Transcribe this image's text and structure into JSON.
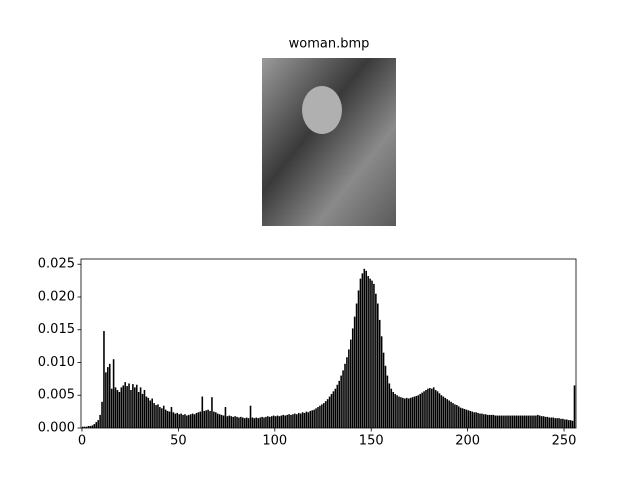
{
  "chart_data": [
    {
      "type": "image",
      "title": "woman.bmp"
    },
    {
      "type": "histogram",
      "color": "#000000",
      "bins": [
        0,
        1,
        2,
        3,
        4,
        5,
        6,
        7,
        8,
        9,
        10,
        11,
        12,
        13,
        14,
        15,
        16,
        17,
        18,
        19,
        20,
        21,
        22,
        23,
        24,
        25,
        26,
        27,
        28,
        29,
        30,
        31,
        32,
        33,
        34,
        35,
        36,
        37,
        38,
        39,
        40,
        41,
        42,
        43,
        44,
        45,
        46,
        47,
        48,
        49,
        50,
        51,
        52,
        53,
        54,
        55,
        56,
        57,
        58,
        59,
        60,
        61,
        62,
        63,
        64,
        65,
        66,
        67,
        68,
        69,
        70,
        71,
        72,
        73,
        74,
        75,
        76,
        77,
        78,
        79,
        80,
        81,
        82,
        83,
        84,
        85,
        86,
        87,
        88,
        89,
        90,
        91,
        92,
        93,
        94,
        95,
        96,
        97,
        98,
        99,
        100,
        101,
        102,
        103,
        104,
        105,
        106,
        107,
        108,
        109,
        110,
        111,
        112,
        113,
        114,
        115,
        116,
        117,
        118,
        119,
        120,
        121,
        122,
        123,
        124,
        125,
        126,
        127,
        128,
        129,
        130,
        131,
        132,
        133,
        134,
        135,
        136,
        137,
        138,
        139,
        140,
        141,
        142,
        143,
        144,
        145,
        146,
        147,
        148,
        149,
        150,
        151,
        152,
        153,
        154,
        155,
        156,
        157,
        158,
        159,
        160,
        161,
        162,
        163,
        164,
        165,
        166,
        167,
        168,
        169,
        170,
        171,
        172,
        173,
        174,
        175,
        176,
        177,
        178,
        179,
        180,
        181,
        182,
        183,
        184,
        185,
        186,
        187,
        188,
        189,
        190,
        191,
        192,
        193,
        194,
        195,
        196,
        197,
        198,
        199,
        200,
        201,
        202,
        203,
        204,
        205,
        206,
        207,
        208,
        209,
        210,
        211,
        212,
        213,
        214,
        215,
        216,
        217,
        218,
        219,
        220,
        221,
        222,
        223,
        224,
        225,
        226,
        227,
        228,
        229,
        230,
        231,
        232,
        233,
        234,
        235,
        236,
        237,
        238,
        239,
        240,
        241,
        242,
        243,
        244,
        245,
        246,
        247,
        248,
        249,
        250,
        251,
        252,
        253,
        254,
        255,
        256
      ],
      "values": [
        0.0002,
        0.0002,
        0.0002,
        0.0003,
        0.0003,
        0.0004,
        0.0006,
        0.0009,
        0.0012,
        0.002,
        0.004,
        0.0148,
        0.0085,
        0.0093,
        0.0098,
        0.006,
        0.0105,
        0.0062,
        0.0058,
        0.0055,
        0.0062,
        0.0065,
        0.007,
        0.0064,
        0.0068,
        0.0058,
        0.0067,
        0.0062,
        0.0066,
        0.0055,
        0.0062,
        0.0052,
        0.0058,
        0.0048,
        0.0046,
        0.0042,
        0.0045,
        0.0038,
        0.0035,
        0.0036,
        0.0032,
        0.003,
        0.0034,
        0.0028,
        0.0026,
        0.0025,
        0.0032,
        0.0024,
        0.0022,
        0.0023,
        0.0021,
        0.0022,
        0.002,
        0.0021,
        0.0019,
        0.002,
        0.0021,
        0.0022,
        0.0021,
        0.0023,
        0.0024,
        0.0025,
        0.0048,
        0.0026,
        0.0027,
        0.0028,
        0.0026,
        0.0047,
        0.0025,
        0.0024,
        0.0022,
        0.0021,
        0.002,
        0.0019,
        0.0032,
        0.0018,
        0.0019,
        0.0018,
        0.0017,
        0.0018,
        0.0017,
        0.0016,
        0.0017,
        0.0016,
        0.0015,
        0.0016,
        0.0015,
        0.0034,
        0.0016,
        0.0015,
        0.0016,
        0.0015,
        0.0016,
        0.0017,
        0.0016,
        0.0017,
        0.0018,
        0.0017,
        0.0018,
        0.0019,
        0.0018,
        0.0019,
        0.0018,
        0.0019,
        0.002,
        0.0019,
        0.002,
        0.0021,
        0.002,
        0.0021,
        0.0022,
        0.0021,
        0.0023,
        0.0022,
        0.0024,
        0.0023,
        0.0025,
        0.0024,
        0.0026,
        0.0027,
        0.0028,
        0.003,
        0.0032,
        0.0034,
        0.0036,
        0.0038,
        0.0041,
        0.0044,
        0.0048,
        0.0052,
        0.0056,
        0.006,
        0.0066,
        0.0072,
        0.008,
        0.0088,
        0.0098,
        0.0108,
        0.012,
        0.0135,
        0.0152,
        0.017,
        0.019,
        0.021,
        0.0228,
        0.0236,
        0.0243,
        0.024,
        0.0232,
        0.0228,
        0.0225,
        0.022,
        0.0205,
        0.019,
        0.0165,
        0.014,
        0.0115,
        0.0095,
        0.008,
        0.0068,
        0.006,
        0.0055,
        0.0052,
        0.005,
        0.0048,
        0.0047,
        0.0046,
        0.0045,
        0.0046,
        0.0045,
        0.0046,
        0.0047,
        0.0048,
        0.0049,
        0.005,
        0.0052,
        0.0054,
        0.0056,
        0.0058,
        0.006,
        0.0061,
        0.006,
        0.0062,
        0.0058,
        0.0056,
        0.0053,
        0.005,
        0.0048,
        0.0046,
        0.0044,
        0.0042,
        0.004,
        0.0038,
        0.0036,
        0.0035,
        0.0033,
        0.0031,
        0.003,
        0.0029,
        0.0028,
        0.0027,
        0.0026,
        0.0025,
        0.0024,
        0.0024,
        0.0023,
        0.0022,
        0.0022,
        0.0021,
        0.0021,
        0.002,
        0.002,
        0.002,
        0.002,
        0.0019,
        0.0019,
        0.0019,
        0.0019,
        0.0019,
        0.0019,
        0.0019,
        0.0019,
        0.0019,
        0.0019,
        0.0019,
        0.0019,
        0.0019,
        0.0019,
        0.0019,
        0.0019,
        0.0019,
        0.0019,
        0.0019,
        0.0019,
        0.0019,
        0.0019,
        0.002,
        0.0019,
        0.0018,
        0.0018,
        0.0017,
        0.0017,
        0.0016,
        0.0016,
        0.0016,
        0.0015,
        0.0015,
        0.0015,
        0.0014,
        0.0014,
        0.0013,
        0.0013,
        0.0012,
        0.0012,
        0.0011,
        0.0065
      ],
      "xlim": [
        -0.5,
        256.2
      ],
      "ylim": [
        0,
        0.0258
      ],
      "xticks": [
        0,
        50,
        100,
        150,
        200,
        250
      ],
      "yticks": [
        {
          "value": 0,
          "label": "0.000"
        },
        {
          "value": 0.005,
          "label": "0.005"
        },
        {
          "value": 0.01,
          "label": "0.010"
        },
        {
          "value": 0.015,
          "label": "0.015"
        },
        {
          "value": 0.02,
          "label": "0.020"
        },
        {
          "value": 0.025,
          "label": "0.025"
        }
      ]
    }
  ]
}
